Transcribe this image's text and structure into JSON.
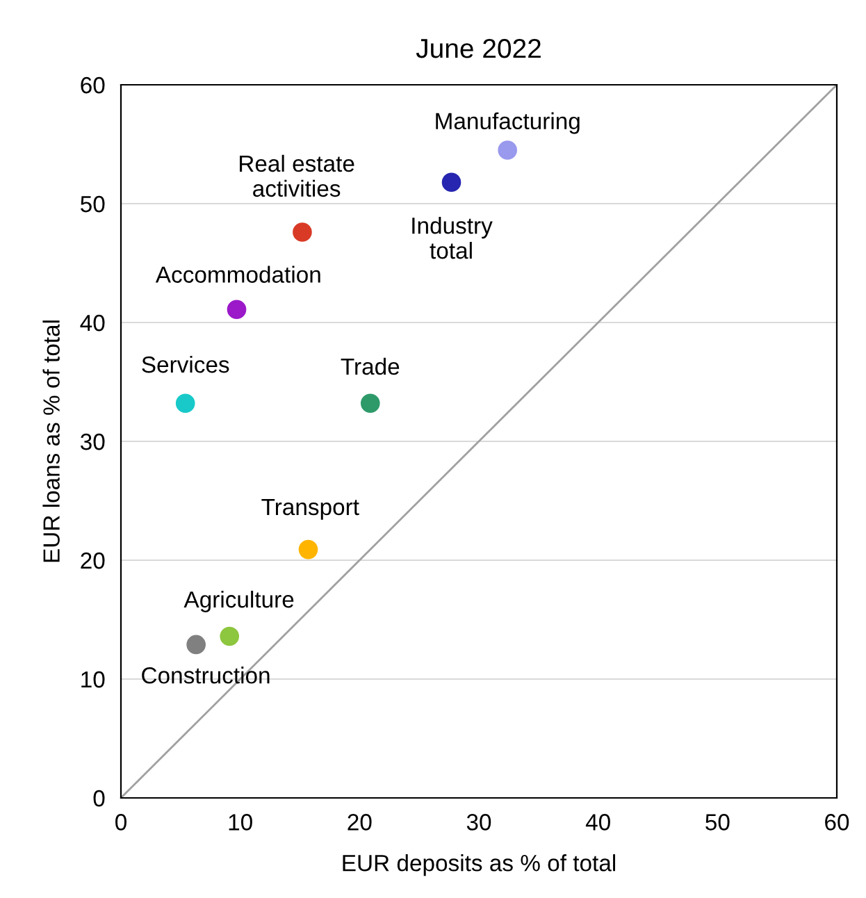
{
  "chart_data": {
    "type": "scatter",
    "title": "June 2022",
    "xlabel": "EUR deposits as % of total",
    "ylabel": "EUR loans as % of total",
    "xlim": [
      0,
      60
    ],
    "ylim": [
      0,
      60
    ],
    "xticks": [
      0,
      10,
      20,
      30,
      40,
      50,
      60
    ],
    "yticks": [
      0,
      10,
      20,
      30,
      40,
      50,
      60
    ],
    "grid": "y",
    "legend": false,
    "marker": "circle",
    "series": [
      {
        "type": "line",
        "color": "#a0a0a0",
        "marker": "none",
        "x": [
          0,
          60
        ],
        "values": [
          0,
          60
        ]
      },
      {
        "name": "Manufacturing",
        "color": "#9999ee",
        "x": [
          32.4
        ],
        "values": [
          54.5
        ]
      },
      {
        "name": "Industry\ntotal",
        "color": "#2626b0",
        "x": [
          27.7
        ],
        "values": [
          51.8
        ]
      },
      {
        "name": "Real estate\nactivities",
        "color": "#d93a26",
        "x": [
          15.2
        ],
        "values": [
          47.6
        ]
      },
      {
        "name": "Accommodation",
        "color": "#9b19c9",
        "x": [
          9.7
        ],
        "values": [
          41.1
        ]
      },
      {
        "name": "Services",
        "color": "#19c9c9",
        "x": [
          5.4
        ],
        "values": [
          33.2
        ]
      },
      {
        "name": "Trade",
        "color": "#2e9a6a",
        "x": [
          20.9
        ],
        "values": [
          33.2
        ]
      },
      {
        "name": "Transport",
        "color": "#ffb400",
        "x": [
          15.7
        ],
        "values": [
          20.9
        ]
      },
      {
        "name": "Agriculture",
        "color": "#8dc63f",
        "x": [
          9.1
        ],
        "values": [
          13.6
        ]
      },
      {
        "name": "Construction",
        "color": "#808080",
        "x": [
          6.3
        ],
        "values": [
          12.9
        ]
      }
    ]
  }
}
